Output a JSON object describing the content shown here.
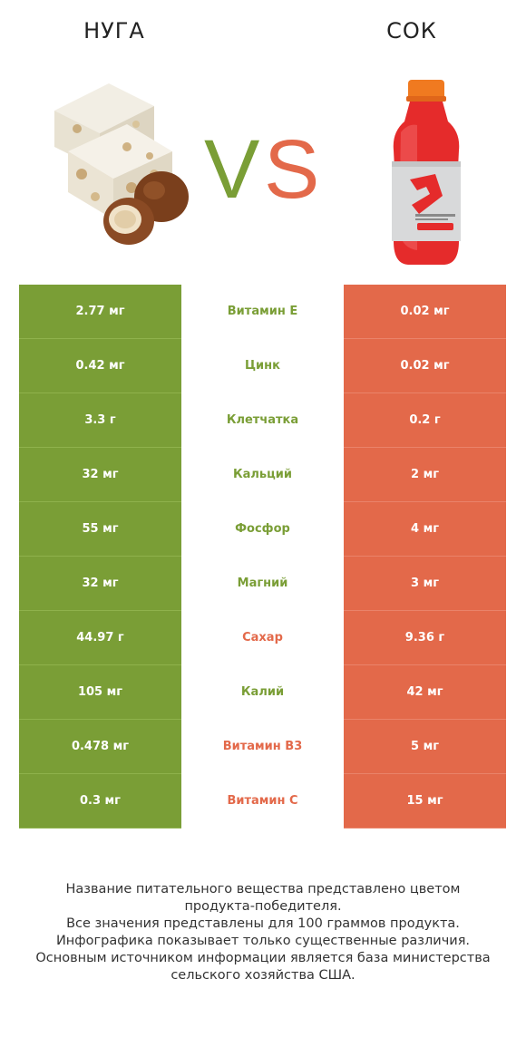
{
  "header": {
    "left_title": "нуга",
    "right_title": "сок",
    "vs_text": "VS"
  },
  "colors": {
    "green": "#7a9e36",
    "red": "#e3694a",
    "vs_v": "#7a9e36",
    "vs_s": "#e3694a"
  },
  "rows": [
    {
      "left": "2.77 мг",
      "name": "Витамин E",
      "right": "0.02 мг",
      "winner": "left"
    },
    {
      "left": "0.42 мг",
      "name": "Цинк",
      "right": "0.02 мг",
      "winner": "left"
    },
    {
      "left": "3.3 г",
      "name": "Клетчатка",
      "right": "0.2 г",
      "winner": "left"
    },
    {
      "left": "32 мг",
      "name": "Кальций",
      "right": "2 мг",
      "winner": "left"
    },
    {
      "left": "55 мг",
      "name": "Фосфор",
      "right": "4 мг",
      "winner": "left"
    },
    {
      "left": "32 мг",
      "name": "Магний",
      "right": "3 мг",
      "winner": "left"
    },
    {
      "left": "44.97 г",
      "name": "Сахар",
      "right": "9.36 г",
      "winner": "right"
    },
    {
      "left": "105 мг",
      "name": "Калий",
      "right": "42 мг",
      "winner": "left"
    },
    {
      "left": "0.478 мг",
      "name": "Витамин B3",
      "right": "5 мг",
      "winner": "right"
    },
    {
      "left": "0.3 мг",
      "name": "Витамин C",
      "right": "15 мг",
      "winner": "right"
    }
  ],
  "footer": {
    "line1": "Название питательного вещества представлено цветом",
    "line2": "продукта-победителя.",
    "line3": "Все значения представлены для 100 граммов продукта.",
    "line4": "Инфографика показывает только существенные различия.",
    "line5": "Основным источником информации является база министерства",
    "line6": "сельского хозяйства США."
  }
}
